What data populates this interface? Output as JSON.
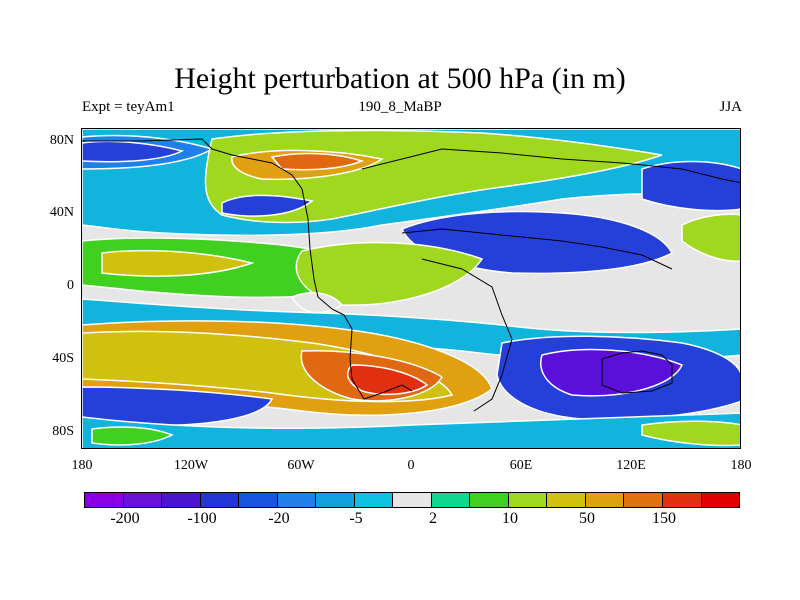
{
  "title": "Height perturbation at 500 hPa (in m)",
  "left_label": "Expt = teyAm1",
  "center_label": "190_8_MaBP",
  "right_label": "JJA",
  "y_ticks": [
    "80N",
    "40N",
    "0",
    "40S",
    "80S"
  ],
  "x_ticks": [
    "180",
    "120W",
    "60W",
    "0",
    "60E",
    "120E",
    "180"
  ],
  "colorbar": {
    "colors": [
      "#8a00e6",
      "#6a12d9",
      "#4a14d0",
      "#2435d8",
      "#1456e0",
      "#1e80e8",
      "#10a0e0",
      "#10c0e0",
      "#e6e6e6",
      "#10d890",
      "#40d020",
      "#a0d820",
      "#d0c010",
      "#e0a010",
      "#e07010",
      "#e03010",
      "#e00000"
    ],
    "labels": [
      "-200",
      "-100",
      "-20",
      "-5",
      "2",
      "10",
      "50",
      "150"
    ]
  },
  "map_colors": {
    "light_blue": "#10b4dc",
    "mid_blue": "#1e80e8",
    "blue": "#2440d8",
    "violet": "#5a10d8",
    "gray": "#e6e6e6",
    "green": "#40d020",
    "yellow_green": "#a0d820",
    "yellow": "#d0c010",
    "orange": "#e0a010",
    "red_orange": "#e06810",
    "red": "#e03010"
  }
}
